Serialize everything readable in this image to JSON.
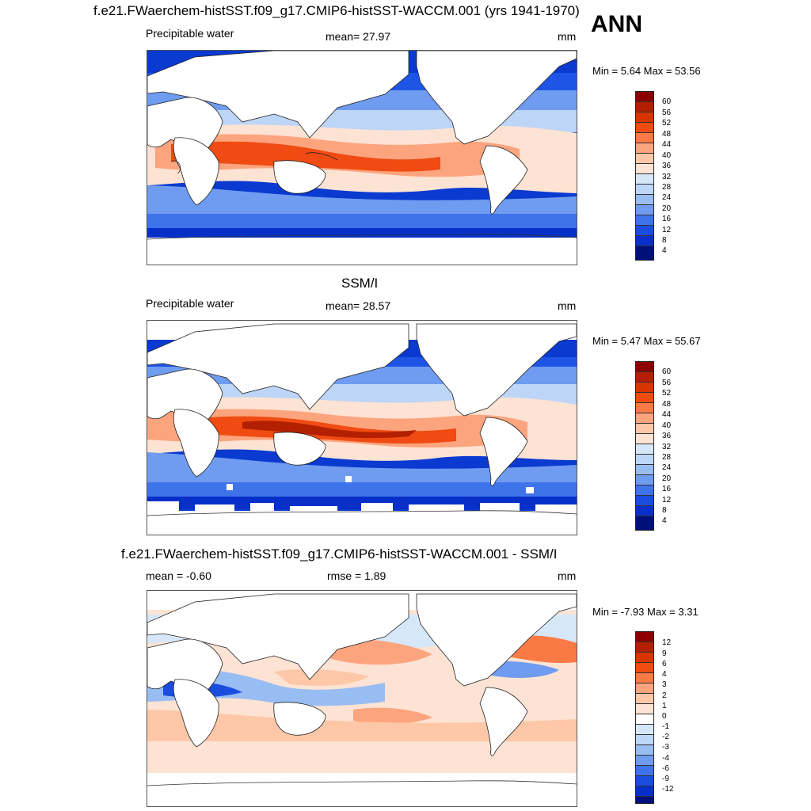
{
  "season": "ANN",
  "panels": [
    {
      "title": "f.e21.FWaerchem-histSST.f09_g17.CMIP6-histSST-WACCM.001 (yrs 1941-1970)",
      "left_label": "Precipitable water",
      "stat_label": "mean=  27.97",
      "units": "mm",
      "minmax": "Min =   5.64 Max =  53.56",
      "colorbar_labels": [
        "60",
        "56",
        "52",
        "48",
        "44",
        "40",
        "36",
        "32",
        "28",
        "24",
        "20",
        "16",
        "12",
        "8",
        "4"
      ]
    },
    {
      "title": "SSM/I",
      "left_label": "Precipitable water",
      "stat_label": "mean=  28.57",
      "units": "mm",
      "minmax": "Min =   5.47 Max =  55.67",
      "colorbar_labels": [
        "60",
        "56",
        "52",
        "48",
        "44",
        "40",
        "36",
        "32",
        "28",
        "24",
        "20",
        "16",
        "12",
        "8",
        "4"
      ]
    },
    {
      "title": "f.e21.FWaerchem-histSST.f09_g17.CMIP6-histSST-WACCM.001 - SSM/I",
      "left_label": "mean =  -0.60",
      "stat_label": "rmse =   1.89",
      "units": "mm",
      "minmax": "Min =  -7.93 Max =   3.31",
      "colorbar_labels": [
        "12",
        "9",
        "6",
        "4",
        "3",
        "2",
        "1",
        "0",
        "-1",
        "-2",
        "-3",
        "-4",
        "-6",
        "-9",
        "-12"
      ]
    }
  ],
  "colors": {
    "abs_scale": [
      "#8b0000",
      "#b22000",
      "#d83400",
      "#f04b12",
      "#f97a45",
      "#fca47e",
      "#fdc7a8",
      "#fde3d3",
      "#d7e7fa",
      "#bdd5f7",
      "#98bdf3",
      "#6f9cf0",
      "#3f73ea",
      "#1a4ce0",
      "#0630c8",
      "#001b9a",
      "#00107a"
    ],
    "diff_scale": [
      "#8b0000",
      "#b22000",
      "#d83400",
      "#f04b12",
      "#f97a45",
      "#fca47e",
      "#fdc7a8",
      "#fde3d3",
      "#ffffff",
      "#d7e7fa",
      "#bdd5f7",
      "#98bdf3",
      "#6f9cf0",
      "#3f73ea",
      "#1a4ce0",
      "#0630c8",
      "#00107a"
    ]
  }
}
